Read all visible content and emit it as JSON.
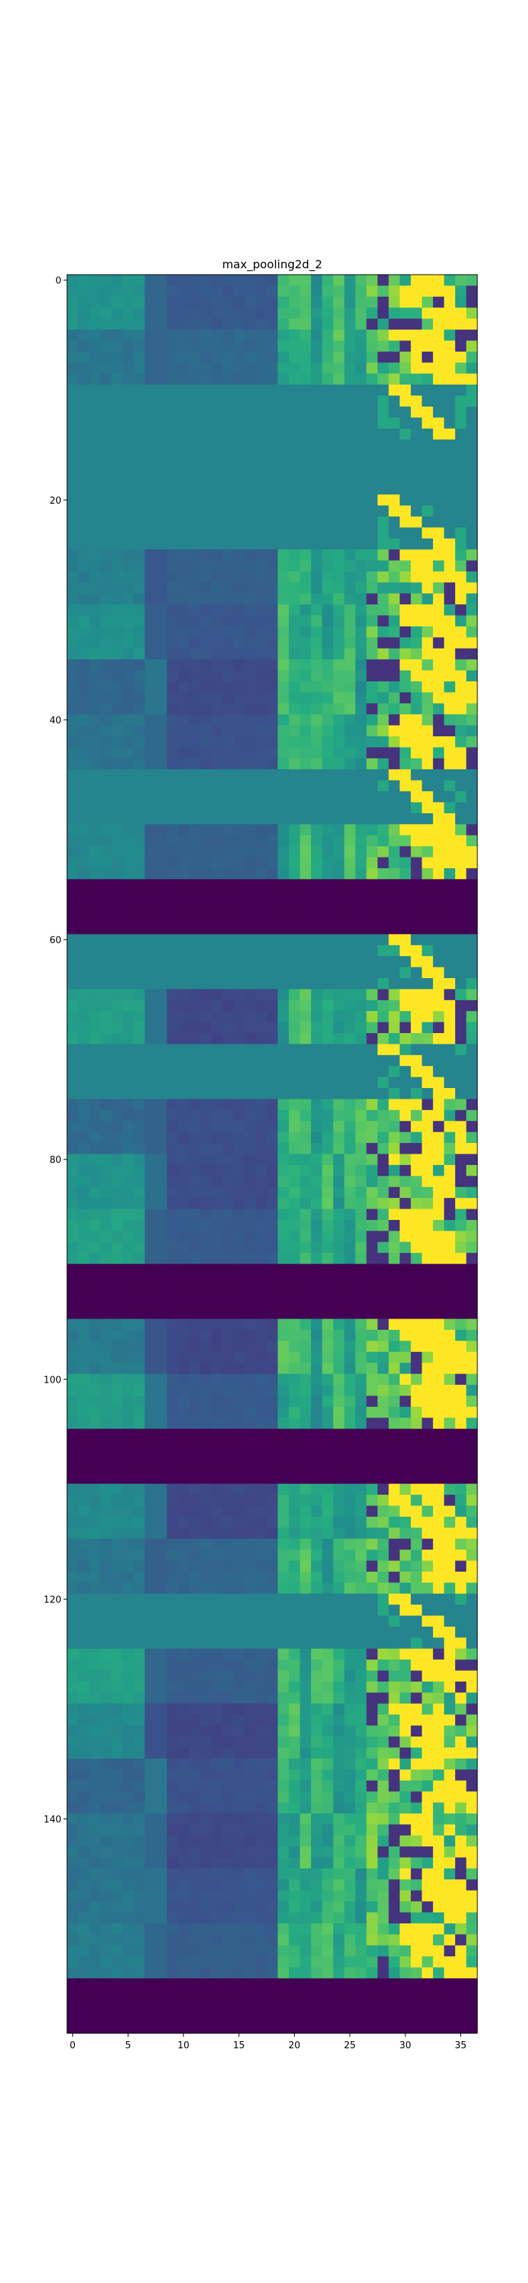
{
  "chart_data": {
    "type": "heatmap",
    "title": "max_pooling2d_2",
    "colormap": "viridis",
    "n_cols": 37,
    "n_rows": 160,
    "xlim": [
      -0.5,
      36.5
    ],
    "ylim": [
      159.5,
      -0.5
    ],
    "x_ticks": [
      0,
      5,
      10,
      15,
      20,
      25,
      30,
      35
    ],
    "y_ticks": [
      0,
      20,
      40,
      60,
      80,
      100,
      120,
      140
    ],
    "value_range": [
      0,
      1
    ],
    "background_value": 0.45,
    "dark_bands": [
      [
        55,
        59
      ],
      [
        90,
        94
      ],
      [
        105,
        109
      ],
      [
        155,
        159
      ]
    ],
    "activation_bands": [
      {
        "rows": [
          0,
          4
        ],
        "style": "wave"
      },
      {
        "rows": [
          5,
          9
        ],
        "style": "wave"
      },
      {
        "rows": [
          10,
          14
        ],
        "style": "sparse"
      },
      {
        "rows": [
          15,
          19
        ],
        "style": "flat"
      },
      {
        "rows": [
          20,
          24
        ],
        "style": "sparse"
      },
      {
        "rows": [
          25,
          29
        ],
        "style": "wave"
      },
      {
        "rows": [
          30,
          34
        ],
        "style": "wave"
      },
      {
        "rows": [
          35,
          39
        ],
        "style": "wave"
      },
      {
        "rows": [
          40,
          44
        ],
        "style": "wave"
      },
      {
        "rows": [
          45,
          49
        ],
        "style": "sparse"
      },
      {
        "rows": [
          50,
          54
        ],
        "style": "wave"
      },
      {
        "rows": [
          60,
          64
        ],
        "style": "sparse"
      },
      {
        "rows": [
          65,
          69
        ],
        "style": "wave"
      },
      {
        "rows": [
          70,
          74
        ],
        "style": "sparse"
      },
      {
        "rows": [
          75,
          79
        ],
        "style": "wave"
      },
      {
        "rows": [
          80,
          84
        ],
        "style": "wave"
      },
      {
        "rows": [
          85,
          89
        ],
        "style": "wave"
      },
      {
        "rows": [
          95,
          99
        ],
        "style": "wave"
      },
      {
        "rows": [
          100,
          104
        ],
        "style": "wave"
      },
      {
        "rows": [
          110,
          114
        ],
        "style": "wave"
      },
      {
        "rows": [
          115,
          119
        ],
        "style": "wave"
      },
      {
        "rows": [
          120,
          124
        ],
        "style": "sparse"
      },
      {
        "rows": [
          125,
          129
        ],
        "style": "wave"
      },
      {
        "rows": [
          130,
          134
        ],
        "style": "wave"
      },
      {
        "rows": [
          135,
          139
        ],
        "style": "wave"
      },
      {
        "rows": [
          140,
          144
        ],
        "style": "wave"
      },
      {
        "rows": [
          145,
          149
        ],
        "style": "wave"
      },
      {
        "rows": [
          150,
          154
        ],
        "style": "wave"
      }
    ]
  }
}
